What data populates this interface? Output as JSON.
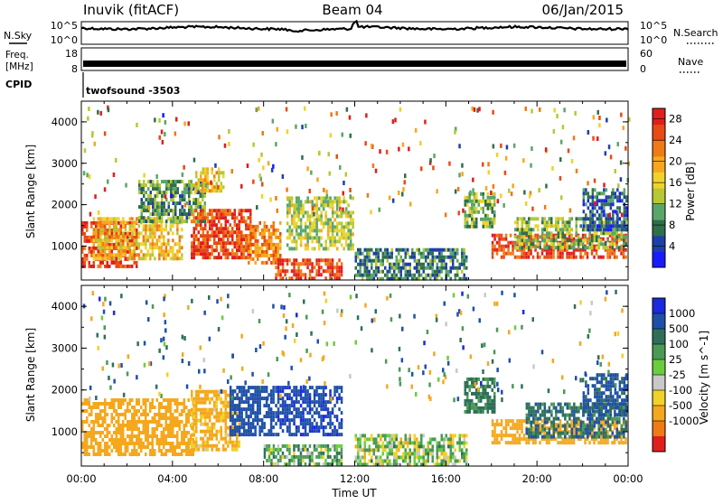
{
  "header": {
    "station": "Inuvik (fitACF)",
    "beam": "Beam 04",
    "date": "06/Jan/2015"
  },
  "strips": {
    "nsky_label": "N.Sky",
    "nsky_ticks": [
      "10^5",
      "10^0"
    ],
    "nsearch_label": "N.Search",
    "freq_label_1": "Freq.",
    "freq_label_2": "[MHz]",
    "freq_ticks": [
      "18",
      "8"
    ],
    "nave_label": "Nave",
    "nave_ticks": [
      "60",
      "0"
    ],
    "cpid_label": "CPID",
    "cpid_value": "twofsound -3503"
  },
  "colors": {
    "power": [
      "#1a1aff",
      "#1e3fa8",
      "#2f6f4a",
      "#5aa66a",
      "#b8c832",
      "#f0d22a",
      "#f5a81e",
      "#f07a14",
      "#e84a14",
      "#e01e1e"
    ],
    "velocity": [
      "#e01e1e",
      "#f07a14",
      "#f5a81e",
      "#f0d22a",
      "#c8c8c8",
      "#6acd40",
      "#4a9a55",
      "#2f6f5a",
      "#1e50a8",
      "#1a2adc"
    ]
  },
  "chart_data": [
    {
      "type": "heatmap",
      "panel": "power",
      "xlabel": "",
      "ylabel": "Slant Range [km]",
      "xlim": [
        "00:00",
        "24:00"
      ],
      "ylim": [
        180,
        4500
      ],
      "yticks": [
        "1000",
        "2000",
        "3000",
        "4000"
      ],
      "colorbar_label": "Power [dB]",
      "colorbar_ticks": [
        "4",
        "8",
        "12",
        "16",
        "20",
        "24",
        "28"
      ],
      "colorbar_range": [
        0,
        30
      ],
      "regions": [
        {
          "t": [
            0.0,
            2.5
          ],
          "r": [
            500,
            1600
          ],
          "v": 27
        },
        {
          "t": [
            0.5,
            4.5
          ],
          "r": [
            700,
            1700
          ],
          "v": 18
        },
        {
          "t": [
            2.5,
            5.5
          ],
          "r": [
            1600,
            2600
          ],
          "v": 10
        },
        {
          "t": [
            4.8,
            7.5
          ],
          "r": [
            700,
            1900
          ],
          "v": 26
        },
        {
          "t": [
            5.0,
            6.3
          ],
          "r": [
            2300,
            2900
          ],
          "v": 18
        },
        {
          "t": [
            7.3,
            8.8
          ],
          "r": [
            600,
            1600
          ],
          "v": 22
        },
        {
          "t": [
            8.5,
            11.5
          ],
          "r": [
            200,
            700
          ],
          "v": 26
        },
        {
          "t": [
            9.0,
            12.0
          ],
          "r": [
            900,
            2200
          ],
          "v": 14
        },
        {
          "t": [
            12.0,
            17.0
          ],
          "r": [
            250,
            950
          ],
          "v": 8
        },
        {
          "t": [
            16.8,
            18.2
          ],
          "r": [
            1500,
            2300
          ],
          "v": 12
        },
        {
          "t": [
            18.0,
            24.0
          ],
          "r": [
            700,
            1300
          ],
          "v": 26
        },
        {
          "t": [
            19.0,
            24.0
          ],
          "r": [
            1000,
            1700
          ],
          "v": 12
        },
        {
          "t": [
            22.0,
            24.0
          ],
          "r": [
            1400,
            2400
          ],
          "v": 6
        }
      ]
    },
    {
      "type": "heatmap",
      "panel": "velocity",
      "xlabel": "Time UT",
      "ylabel": "Slant Range [km]",
      "xlim": [
        "00:00",
        "24:00"
      ],
      "ylim": [
        180,
        4500
      ],
      "xticks": [
        "00:00",
        "04:00",
        "08:00",
        "12:00",
        "16:00",
        "20:00",
        "00:00"
      ],
      "yticks": [
        "1000",
        "2000",
        "3000",
        "4000"
      ],
      "colorbar_label": "Velocity [m s^-1]",
      "colorbar_ticks": [
        "1000",
        "500",
        "100",
        "25",
        "-25",
        "-100",
        "-500",
        "-1000"
      ],
      "regions": [
        {
          "t": [
            0.0,
            5.0
          ],
          "r": [
            500,
            1800
          ],
          "v": -300
        },
        {
          "t": [
            4.8,
            7.0
          ],
          "r": [
            600,
            2000
          ],
          "v": -200
        },
        {
          "t": [
            6.5,
            8.5
          ],
          "r": [
            900,
            2100
          ],
          "v": 800
        },
        {
          "t": [
            8.5,
            11.5
          ],
          "r": [
            900,
            2100
          ],
          "v": 900
        },
        {
          "t": [
            8.0,
            11.5
          ],
          "r": [
            200,
            700
          ],
          "v": 150
        },
        {
          "t": [
            12.0,
            17.0
          ],
          "r": [
            250,
            950
          ],
          "v": 60
        },
        {
          "t": [
            16.8,
            18.2
          ],
          "r": [
            1500,
            2300
          ],
          "v": 300
        },
        {
          "t": [
            18.0,
            24.0
          ],
          "r": [
            700,
            1300
          ],
          "v": -300
        },
        {
          "t": [
            19.5,
            24.0
          ],
          "r": [
            900,
            1700
          ],
          "v": 400
        },
        {
          "t": [
            22.0,
            24.0
          ],
          "r": [
            1400,
            2400
          ],
          "v": 600
        }
      ]
    }
  ]
}
